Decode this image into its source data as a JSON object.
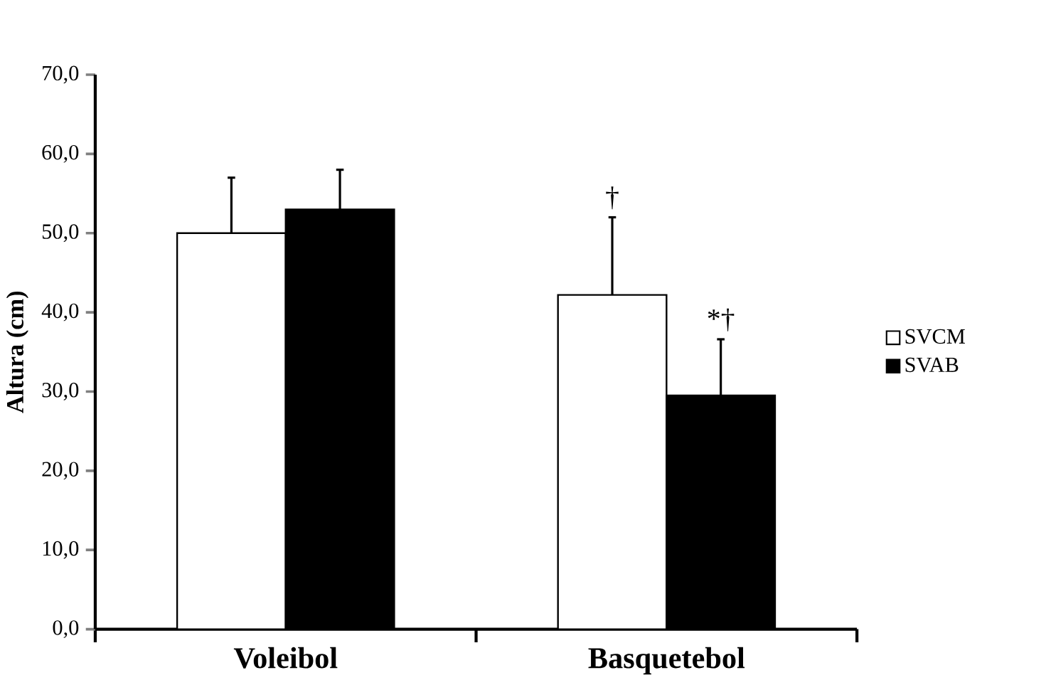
{
  "chart_data": {
    "type": "bar",
    "ylabel": "Altura (cm)",
    "categories": [
      "Voleibol",
      "Basquetebol"
    ],
    "series": [
      {
        "name": "SVCM",
        "color": "#ffffff",
        "values": [
          50.0,
          42.2
        ],
        "errors": [
          7.0,
          9.8
        ]
      },
      {
        "name": "SVAB",
        "color": "#000000",
        "values": [
          53.0,
          29.5
        ],
        "errors": [
          5.0,
          7.1
        ]
      }
    ],
    "ylim": [
      0,
      70
    ],
    "yticks": [
      {
        "value": 0,
        "label": "0,0"
      },
      {
        "value": 10,
        "label": "10,0"
      },
      {
        "value": 20,
        "label": "20,0"
      },
      {
        "value": 30,
        "label": "30,0"
      },
      {
        "value": 40,
        "label": "40,0"
      },
      {
        "value": 50,
        "label": "50,0"
      },
      {
        "value": 60,
        "label": "60,0"
      },
      {
        "value": 70,
        "label": "70,0"
      }
    ],
    "annotations": [
      "†",
      "*†"
    ],
    "legend": "right",
    "grid": false
  }
}
